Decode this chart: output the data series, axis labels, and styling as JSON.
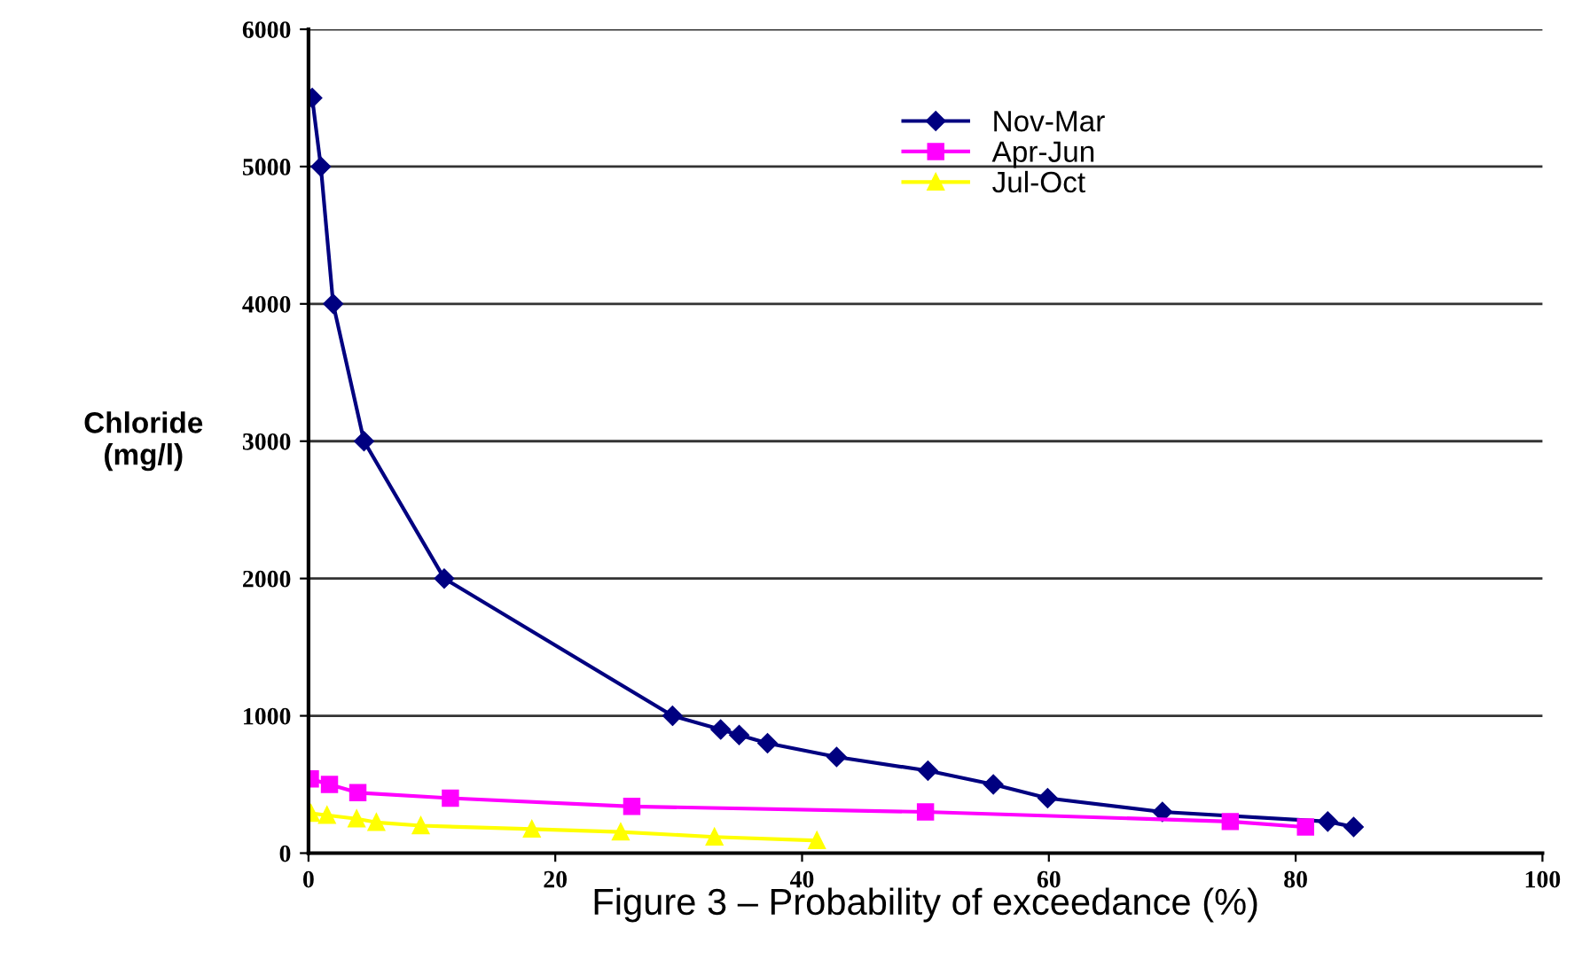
{
  "chart_data": {
    "type": "line",
    "xlabel": "Figure 3 – Probability of exceedance (%)",
    "ylabel": "Chloride\n(mg/l)",
    "xlim": [
      0,
      100
    ],
    "xticks": [
      0,
      20,
      40,
      60,
      80,
      100
    ],
    "ylim": [
      0,
      6000
    ],
    "yticks": [
      0,
      1000,
      2000,
      3000,
      4000,
      5000,
      6000
    ],
    "grid": "y",
    "legend": "top right",
    "series": [
      {
        "name": "Nov-Mar",
        "color": "#000080",
        "marker": "diamond",
        "x": [
          0.3,
          1,
          2,
          4.5,
          11,
          29.5,
          33.4,
          34.9,
          37.2,
          42.8,
          50.2,
          55.5,
          59.9,
          69.2,
          82.6,
          84.7
        ],
        "values": [
          5500,
          5000,
          4000,
          3000,
          2000,
          1000,
          900,
          860,
          800,
          700,
          600,
          500,
          400,
          300,
          230,
          190
        ]
      },
      {
        "name": "Apr-Jun",
        "color": "#ff00ff",
        "marker": "square",
        "x": [
          0.15,
          1.7,
          4,
          11.5,
          26.2,
          50,
          74.7,
          80.8
        ],
        "values": [
          540,
          500,
          440,
          400,
          340,
          300,
          230,
          190
        ]
      },
      {
        "name": "Jul-Oct",
        "color": "#ffff00",
        "marker": "triangle",
        "x": [
          0.2,
          1.5,
          3.9,
          5.5,
          9.1,
          18.1,
          25.3,
          32.9,
          41.2
        ],
        "values": [
          290,
          276,
          250,
          224,
          200,
          175,
          154,
          118,
          92
        ]
      }
    ]
  }
}
